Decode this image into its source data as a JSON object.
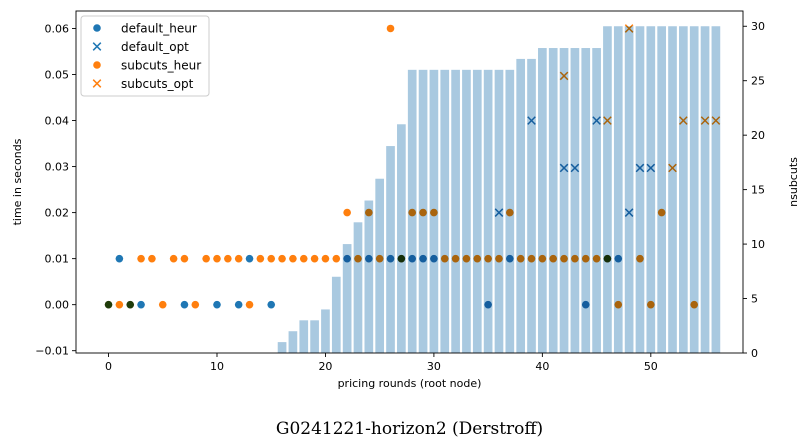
{
  "chart_data": {
    "type": "scatter",
    "caption": "G0241221-horizon2 (Derstroff)",
    "xlabel": "pricing rounds (root node)",
    "ylabel": "time in seconds",
    "y2label": "nsubcuts",
    "xlim": [
      -3,
      58.5
    ],
    "ylim": [
      -0.0105,
      0.0638
    ],
    "y2lim": [
      0,
      31.4
    ],
    "xticks": [
      0,
      10,
      20,
      30,
      40,
      50
    ],
    "yticks": [
      -0.01,
      0.0,
      0.01,
      0.02,
      0.03,
      0.04,
      0.05,
      0.06
    ],
    "ytick_labels": [
      "−0.01",
      "0.00",
      "0.01",
      "0.02",
      "0.03",
      "0.04",
      "0.05",
      "0.06"
    ],
    "y2ticks": [
      0,
      5,
      10,
      15,
      20,
      25,
      30
    ],
    "legend_position": "top-left",
    "grid": false,
    "bars": {
      "name": "nsubcuts",
      "color": "#a9c9e0",
      "x": [
        16,
        17,
        18,
        19,
        20,
        21,
        22,
        23,
        24,
        25,
        26,
        27,
        28,
        29,
        30,
        31,
        32,
        33,
        34,
        35,
        36,
        37,
        38,
        39,
        40,
        41,
        42,
        43,
        44,
        45,
        46,
        47,
        48,
        49,
        50,
        51,
        52,
        53,
        54,
        55,
        56
      ],
      "values": [
        1,
        2,
        3,
        3,
        4,
        7,
        10,
        12,
        14,
        16,
        19,
        21,
        26,
        26,
        26,
        26,
        26,
        26,
        26,
        26,
        26,
        26,
        27,
        27,
        28,
        28,
        28,
        28,
        28,
        28,
        30,
        30,
        30,
        30,
        30,
        30,
        30,
        30,
        30,
        30,
        30
      ]
    },
    "series": [
      {
        "name": "default_heur",
        "marker": "circle",
        "color": "#1f77b4",
        "x": [
          0,
          1,
          2,
          3,
          7,
          10,
          12,
          13,
          15,
          22,
          24,
          26,
          27,
          28,
          29,
          30,
          35,
          37,
          44,
          46,
          47
        ],
        "y": [
          0,
          0.01,
          0,
          0,
          0,
          0,
          0,
          0.01,
          0,
          0.01,
          0.01,
          0.01,
          0.01,
          0.01,
          0.01,
          0.01,
          0,
          0.01,
          0,
          0.01,
          0.01
        ]
      },
      {
        "name": "default_opt",
        "marker": "x",
        "color": "#1f77b4",
        "x": [
          36,
          39,
          42,
          43,
          45,
          48,
          49,
          50
        ],
        "y": [
          0.02,
          0.04,
          0.0297,
          0.0297,
          0.04,
          0.02,
          0.0297,
          0.0297
        ]
      },
      {
        "name": "subcuts_heur",
        "marker": "circle",
        "color": "#ff7f0e",
        "x": [
          0,
          1,
          2,
          3,
          4,
          5,
          6,
          7,
          8,
          9,
          10,
          11,
          12,
          13,
          14,
          15,
          16,
          17,
          18,
          19,
          20,
          21,
          22,
          23,
          24,
          25,
          26,
          27,
          28,
          29,
          30,
          31,
          32,
          33,
          34,
          35,
          36,
          37,
          38,
          39,
          40,
          41,
          42,
          43,
          44,
          45,
          46,
          47,
          49,
          50,
          51,
          54
        ],
        "y": [
          0,
          0,
          0,
          0.01,
          0.01,
          0,
          0.01,
          0.01,
          0,
          0.01,
          0.01,
          0.01,
          0.01,
          0,
          0.01,
          0.01,
          0.01,
          0.01,
          0.01,
          0.01,
          0.01,
          0.01,
          0.02,
          0.01,
          0.02,
          0.01,
          0.06,
          0.01,
          0.02,
          0.02,
          0.02,
          0.01,
          0.01,
          0.01,
          0.01,
          0.01,
          0.01,
          0.02,
          0.01,
          0.01,
          0.01,
          0.01,
          0.01,
          0.01,
          0.01,
          0.01,
          0.01,
          0,
          0.01,
          0,
          0.02,
          0
        ]
      },
      {
        "name": "subcuts_opt",
        "marker": "x",
        "color": "#ff7f0e",
        "x": [
          42,
          46,
          48,
          52,
          53,
          55,
          56
        ],
        "y": [
          0.0497,
          0.04,
          0.06,
          0.0297,
          0.04,
          0.04,
          0.04
        ]
      }
    ]
  }
}
